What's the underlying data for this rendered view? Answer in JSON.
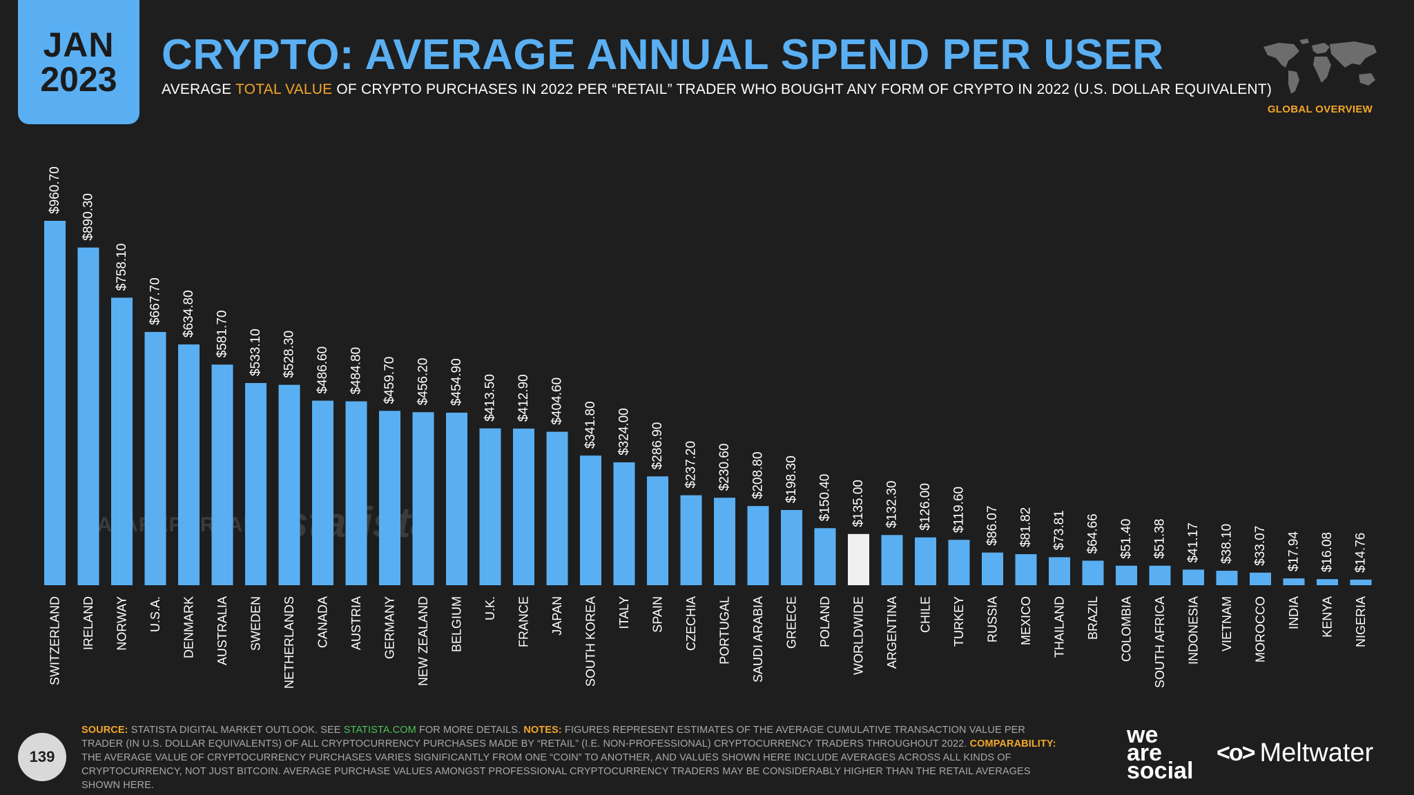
{
  "header": {
    "date_month": "JAN",
    "date_year": "2023",
    "title": "CRYPTO: AVERAGE ANNUAL SPEND PER USER",
    "subtitle_pre": "AVERAGE ",
    "subtitle_highlight": "TOTAL VALUE",
    "subtitle_post": " OF CRYPTO PURCHASES IN 2022 PER “RETAIL” TRADER WHO BOUGHT ANY FORM OF CRYPTO IN 2022 (U.S. DOLLAR EQUIVALENT)",
    "section_label": "GLOBAL OVERVIEW"
  },
  "watermarks": {
    "datareportal": "DATAREPORTAL",
    "statista": "statista"
  },
  "chart_data": {
    "type": "bar",
    "title": "CRYPTO: AVERAGE ANNUAL SPEND PER USER",
    "xlabel": "",
    "ylabel": "",
    "ylim": [
      0,
      960.7
    ],
    "categories": [
      "SWITZERLAND",
      "IRELAND",
      "NORWAY",
      "U.S.A.",
      "DENMARK",
      "AUSTRALIA",
      "SWEDEN",
      "NETHERLANDS",
      "CANADA",
      "AUSTRIA",
      "GERMANY",
      "NEW ZEALAND",
      "BELGIUM",
      "U.K.",
      "FRANCE",
      "JAPAN",
      "SOUTH KOREA",
      "ITALY",
      "SPAIN",
      "CZECHIA",
      "PORTUGAL",
      "SAUDI ARABIA",
      "GREECE",
      "POLAND",
      "WORLDWIDE",
      "ARGENTINA",
      "CHILE",
      "TURKEY",
      "RUSSIA",
      "MEXICO",
      "THAILAND",
      "BRAZIL",
      "COLOMBIA",
      "SOUTH AFRICA",
      "INDONESIA",
      "VIETNAM",
      "MOROCCO",
      "INDIA",
      "KENYA",
      "NIGERIA"
    ],
    "values": [
      960.7,
      890.3,
      758.1,
      667.7,
      634.8,
      581.7,
      533.1,
      528.3,
      486.6,
      484.8,
      459.7,
      456.2,
      454.9,
      413.5,
      412.9,
      404.6,
      341.8,
      324.0,
      286.9,
      237.2,
      230.6,
      208.8,
      198.3,
      150.4,
      135.0,
      132.3,
      126.0,
      119.6,
      86.07,
      81.82,
      73.81,
      64.66,
      51.4,
      51.38,
      41.17,
      38.1,
      33.07,
      17.94,
      16.08,
      14.76
    ],
    "labels": [
      "$960.70",
      "$890.30",
      "$758.10",
      "$667.70",
      "$634.80",
      "$581.70",
      "$533.10",
      "$528.30",
      "$486.60",
      "$484.80",
      "$459.70",
      "$456.20",
      "$454.90",
      "$413.50",
      "$412.90",
      "$404.60",
      "$341.80",
      "$324.00",
      "$286.90",
      "$237.20",
      "$230.60",
      "$208.80",
      "$198.30",
      "$150.40",
      "$135.00",
      "$132.30",
      "$126.00",
      "$119.60",
      "$86.07",
      "$81.82",
      "$73.81",
      "$64.66",
      "$51.40",
      "$51.38",
      "$41.17",
      "$38.10",
      "$33.07",
      "$17.94",
      "$16.08",
      "$14.76"
    ],
    "highlight_category": "WORLDWIDE",
    "colors": {
      "bar": "#5aaff2",
      "highlight": "#f0f0f0"
    }
  },
  "footer": {
    "page_number": "139",
    "source_key": "SOURCE:",
    "source_text": " STATISTA DIGITAL MARKET OUTLOOK. SEE ",
    "source_link": "STATISTA.COM",
    "source_after": " FOR MORE DETAILS. ",
    "notes_key": "NOTES:",
    "notes_text": " FIGURES REPRESENT ESTIMATES OF THE AVERAGE CUMULATIVE TRANSACTION VALUE PER TRADER (IN U.S. DOLLAR EQUIVALENTS) OF ALL CRYPTOCURRENCY PURCHASES MADE BY “RETAIL” (I.E. NON-PROFESSIONAL) CRYPTOCURRENCY TRADERS THROUGHOUT 2022. ",
    "comparability_key": "COMPARABILITY:",
    "comparability_text": " THE AVERAGE VALUE OF CRYPTOCURRENCY PURCHASES VARIES SIGNIFICANTLY FROM ONE “COIN” TO ANOTHER, AND VALUES SHOWN HERE INCLUDE AVERAGES ACROSS ALL KINDS OF CRYPTOCURRENCY, NOT JUST BITCOIN. AVERAGE PURCHASE VALUES AMONGST PROFESSIONAL CRYPTOCURRENCY TRADERS MAY BE CONSIDERABLY HIGHER THAN THE RETAIL AVERAGES SHOWN HERE.",
    "brand_was_1": "we",
    "brand_was_2": "are",
    "brand_was_3": "social",
    "brand_meltwater_icon": "<o>",
    "brand_meltwater": "Meltwater"
  }
}
